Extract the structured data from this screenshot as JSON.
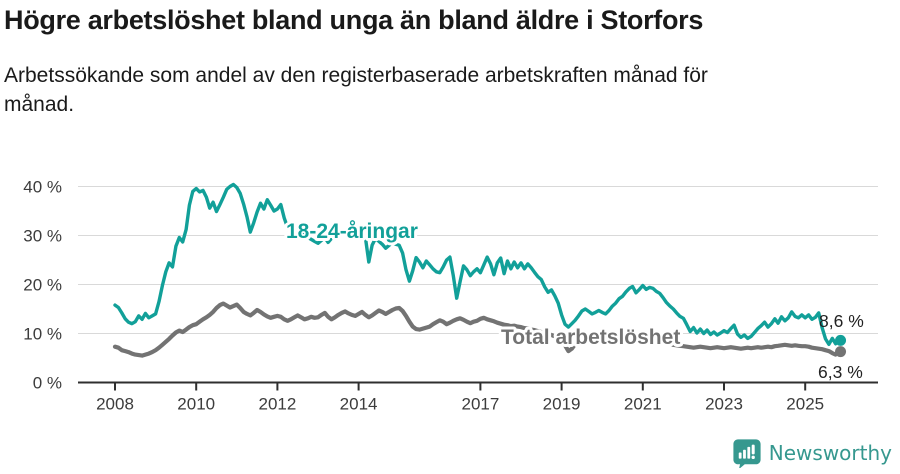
{
  "title": "Högre arbetslöshet bland unga än bland äldre i Storfors",
  "subtitle": {
    "line1": "Arbetssökande som andel av den registerbaserade arbetskraften månad för",
    "line2": "månad."
  },
  "branding": {
    "name": "Newsworthy",
    "logo_color": "#36988f"
  },
  "colors": {
    "accent_teal": "#12a099",
    "series_gray": "#737373",
    "grid": "#d9d9d9",
    "axis": "#2f2f2f",
    "tick_text": "#3c3c3c",
    "end_label_text": "#222222",
    "text": "#1a1a1a"
  },
  "chart_data": {
    "type": "line",
    "title": "Högre arbetslöshet bland unga än bland äldre i Storfors",
    "subtitle": "Arbetssökande som andel av den registerbaserade arbetskraften månad för månad.",
    "unit": "%",
    "frequency": "monthly",
    "x_start": "2008-01",
    "x_end": "2025-11",
    "x_tick_labels": [
      "2008",
      "2010",
      "2012",
      "2014",
      "2017",
      "2019",
      "2021",
      "2023",
      "2025"
    ],
    "x_tick_years": [
      2008,
      2010,
      2012,
      2014,
      2017,
      2019,
      2021,
      2023,
      2025
    ],
    "y_ticks": [
      0,
      10,
      20,
      30,
      40
    ],
    "y_tick_suffix": " %",
    "ylim": [
      0,
      42
    ],
    "grid": "horizontal",
    "legend": "inline-labels",
    "series": [
      {
        "name": "18-24-åringar",
        "color": "#12a099",
        "end_label": "8,6 %",
        "last_value": 8.6,
        "values": [
          15.8,
          15.3,
          14.2,
          13.0,
          12.3,
          12.0,
          12.4,
          13.6,
          12.9,
          14.1,
          13.2,
          13.6,
          14.0,
          16.5,
          19.8,
          22.6,
          24.4,
          23.6,
          27.8,
          29.6,
          28.7,
          31.2,
          36.2,
          39.0,
          39.6,
          38.9,
          39.2,
          37.8,
          35.6,
          36.8,
          34.9,
          36.3,
          37.8,
          39.4,
          40.0,
          40.4,
          39.8,
          38.6,
          36.4,
          33.8,
          30.7,
          32.6,
          34.8,
          36.6,
          35.4,
          37.3,
          36.2,
          35.0,
          35.4,
          36.3,
          33.6,
          31.6,
          30.6,
          30.2,
          31.4,
          30.6,
          30.0,
          29.6,
          29.2,
          28.8,
          28.4,
          29.0,
          29.6,
          28.6,
          29.4,
          30.4,
          31.2,
          30.6,
          30.2,
          30.8,
          30.4,
          30.2,
          30.2,
          29.8,
          29.6,
          24.6,
          28.0,
          29.4,
          28.8,
          28.2,
          27.4,
          28.0,
          28.6,
          28.2,
          28.0,
          26.4,
          23.0,
          20.7,
          22.8,
          25.5,
          24.6,
          23.4,
          24.8,
          24.0,
          23.2,
          22.6,
          22.4,
          23.6,
          25.0,
          25.6,
          21.8,
          17.2,
          20.6,
          23.8,
          23.0,
          21.8,
          22.6,
          23.2,
          22.4,
          24.0,
          25.6,
          24.2,
          22.0,
          24.4,
          25.4,
          22.2,
          24.8,
          23.2,
          24.6,
          23.4,
          24.4,
          23.2,
          24.2,
          23.4,
          22.5,
          21.6,
          21.0,
          19.5,
          18.4,
          18.9,
          17.7,
          16.2,
          13.8,
          11.9,
          11.3,
          12.0,
          12.7,
          13.6,
          14.6,
          15.0,
          14.5,
          14.0,
          14.3,
          14.7,
          14.3,
          14.0,
          14.7,
          15.6,
          16.2,
          17.1,
          17.6,
          18.5,
          19.2,
          19.6,
          18.3,
          19.0,
          19.8,
          19.0,
          19.4,
          19.2,
          18.6,
          18.2,
          17.3,
          16.3,
          15.6,
          15.0,
          14.2,
          13.5,
          13.1,
          11.8,
          10.4,
          11.2,
          10.1,
          10.9,
          10.0,
          10.7,
          9.8,
          10.3,
          9.7,
          10.1,
          10.6,
          10.2,
          11.0,
          11.7,
          9.9,
          9.2,
          9.7,
          9.0,
          9.4,
          10.2,
          11.0,
          11.6,
          12.3,
          11.3,
          12.0,
          13.0,
          12.1,
          13.4,
          12.6,
          13.2,
          14.4,
          13.5,
          13.2,
          13.8,
          13.2,
          13.8,
          12.9,
          13.3,
          14.2,
          11.2,
          8.9,
          7.8,
          9.0,
          7.9,
          8.6
        ]
      },
      {
        "name": "Total arbetslöshet",
        "color": "#737373",
        "end_label": "6,3 %",
        "last_value": 6.3,
        "values": [
          7.3,
          7.1,
          6.6,
          6.4,
          6.2,
          5.9,
          5.7,
          5.6,
          5.5,
          5.7,
          5.9,
          6.2,
          6.6,
          7.1,
          7.7,
          8.3,
          8.9,
          9.6,
          10.2,
          10.6,
          10.3,
          10.8,
          11.3,
          11.7,
          11.9,
          12.4,
          12.9,
          13.3,
          13.8,
          14.4,
          15.2,
          15.8,
          16.1,
          15.7,
          15.3,
          15.6,
          15.9,
          15.2,
          14.4,
          14.0,
          13.7,
          14.2,
          14.8,
          14.4,
          13.9,
          13.5,
          13.2,
          13.4,
          13.6,
          13.4,
          12.9,
          12.6,
          12.9,
          13.3,
          13.7,
          13.3,
          12.9,
          13.1,
          13.4,
          13.2,
          13.3,
          13.8,
          14.2,
          13.4,
          12.9,
          13.3,
          13.8,
          14.2,
          14.5,
          14.1,
          13.8,
          13.6,
          14.0,
          14.4,
          13.8,
          13.3,
          13.7,
          14.2,
          14.7,
          14.4,
          14.0,
          14.4,
          14.8,
          15.1,
          15.2,
          14.6,
          13.6,
          12.4,
          11.4,
          10.9,
          10.8,
          11.0,
          11.2,
          11.4,
          11.9,
          12.3,
          12.7,
          12.4,
          11.9,
          12.2,
          12.6,
          12.9,
          13.1,
          12.8,
          12.4,
          12.1,
          12.4,
          12.6,
          13.0,
          13.2,
          12.9,
          12.7,
          12.5,
          12.2,
          12.0,
          11.8,
          11.7,
          11.5,
          11.6,
          11.4,
          11.3,
          11.1,
          11.0,
          10.8,
          10.7,
          10.5,
          10.3,
          10.1,
          9.9,
          9.7,
          9.4,
          9.1,
          8.7,
          7.6,
          6.4,
          6.9,
          7.8,
          8.3,
          8.6,
          8.8,
          8.9,
          9.0,
          9.1,
          9.2,
          9.2,
          9.3,
          9.5,
          9.8,
          10.0,
          10.1,
          10.0,
          9.9,
          9.8,
          9.7,
          9.5,
          9.4,
          9.3,
          9.2,
          9.0,
          8.9,
          8.7,
          8.5,
          8.3,
          8.1,
          7.9,
          7.7,
          7.6,
          7.5,
          7.4,
          7.3,
          7.2,
          7.1,
          7.2,
          7.3,
          7.2,
          7.1,
          7.0,
          7.1,
          7.2,
          7.1,
          7.0,
          7.1,
          7.2,
          7.1,
          7.0,
          6.9,
          7.0,
          7.1,
          7.0,
          7.1,
          7.2,
          7.1,
          7.2,
          7.3,
          7.2,
          7.4,
          7.5,
          7.6,
          7.7,
          7.6,
          7.5,
          7.6,
          7.5,
          7.4,
          7.4,
          7.3,
          7.1,
          7.0,
          6.9,
          6.8,
          6.6,
          6.4,
          6.0,
          5.7,
          6.3
        ]
      }
    ]
  }
}
